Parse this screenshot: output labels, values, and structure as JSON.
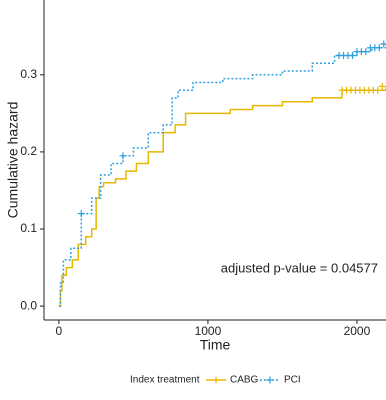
{
  "chart_data": {
    "type": "step",
    "xlabel": "Time",
    "ylabel": "Cumulative hazard",
    "annotation": "adjusted p-value = 0.04577",
    "legend_title": "Index treatment",
    "legend": "bottom",
    "xlim": [
      -100,
      2195
    ],
    "ylim": [
      -0.018,
      0.397
    ],
    "xticks": [
      0,
      1000,
      2000
    ],
    "yticks": [
      {
        "value": 0,
        "label": "0.0"
      },
      0.1,
      0.2,
      0.3
    ],
    "series": [
      {
        "name": "CABG",
        "color": "#E7B800",
        "dash": "solid",
        "x": [
          0,
          10,
          20,
          50,
          90,
          130,
          180,
          220,
          250,
          270,
          300,
          380,
          450,
          520,
          600,
          700,
          780,
          850,
          1000,
          1150,
          1300,
          1500,
          1700,
          1900,
          2100,
          2195
        ],
        "values": [
          0,
          0.02,
          0.04,
          0.05,
          0.06,
          0.08,
          0.09,
          0.1,
          0.14,
          0.155,
          0.16,
          0.165,
          0.175,
          0.185,
          0.2,
          0.225,
          0.235,
          0.25,
          0.25,
          0.255,
          0.26,
          0.265,
          0.27,
          0.28,
          0.28,
          0.285
        ],
        "censored": {
          "x": [
            1900,
            1930,
            1960,
            1990,
            2020,
            2050,
            2080,
            2110,
            2140,
            2170
          ],
          "values": [
            0.28,
            0.28,
            0.28,
            0.28,
            0.28,
            0.28,
            0.28,
            0.28,
            0.28,
            0.285
          ]
        }
      },
      {
        "name": "PCI",
        "color": "#2E9FDF",
        "dash": "dotted",
        "x": [
          0,
          10,
          30,
          80,
          150,
          220,
          280,
          350,
          430,
          500,
          600,
          700,
          760,
          800,
          900,
          1100,
          1300,
          1500,
          1700,
          1850,
          2000,
          2100,
          2195
        ],
        "values": [
          0,
          0.03,
          0.06,
          0.075,
          0.12,
          0.14,
          0.17,
          0.185,
          0.195,
          0.205,
          0.225,
          0.235,
          0.27,
          0.28,
          0.29,
          0.295,
          0.3,
          0.305,
          0.315,
          0.325,
          0.33,
          0.335,
          0.34
        ],
        "censored": {
          "x": [
            150,
            430,
            1880,
            1910,
            1940,
            1970,
            2000,
            2030,
            2060,
            2090,
            2120,
            2150,
            2180
          ],
          "values": [
            0.12,
            0.195,
            0.325,
            0.325,
            0.325,
            0.325,
            0.33,
            0.33,
            0.33,
            0.335,
            0.335,
            0.335,
            0.34
          ]
        }
      }
    ]
  }
}
